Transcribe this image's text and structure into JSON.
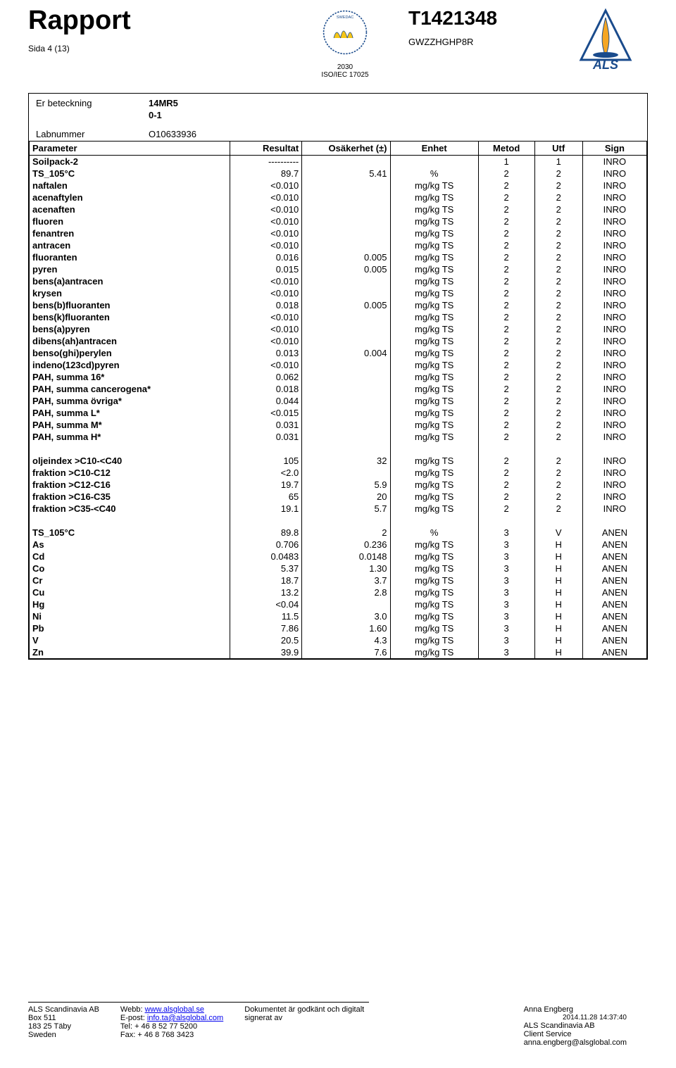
{
  "header": {
    "title": "Rapport",
    "pageLabel": "Sida 4 (13)",
    "accred": {
      "num": "2030",
      "std": "ISO/IEC 17025"
    },
    "reportNum": "T1421348",
    "code": "GWZZHGHP8R",
    "logoText": "ALS"
  },
  "meta": {
    "rows": [
      {
        "lbl": "Er beteckning",
        "val": "14MR5"
      },
      {
        "lbl": "",
        "val": "0-1"
      }
    ],
    "labRow": {
      "lbl": "Labnummer",
      "val": "O10633936"
    }
  },
  "table": {
    "headers": [
      "Parameter",
      "Resultat",
      "Osäkerhet (±)",
      "Enhet",
      "Metod",
      "Utf",
      "Sign"
    ],
    "colWidths": [
      "250px",
      "90px",
      "110px",
      "110px",
      "70px",
      "60px",
      "80px"
    ],
    "rows": [
      [
        "Soilpack-2",
        "----------",
        "",
        "",
        "1",
        "1",
        "INRO"
      ],
      [
        "TS_105°C",
        "89.7",
        "5.41",
        "%",
        "2",
        "2",
        "INRO"
      ],
      [
        "naftalen",
        "<0.010",
        "",
        "mg/kg TS",
        "2",
        "2",
        "INRO"
      ],
      [
        "acenaftylen",
        "<0.010",
        "",
        "mg/kg TS",
        "2",
        "2",
        "INRO"
      ],
      [
        "acenaften",
        "<0.010",
        "",
        "mg/kg TS",
        "2",
        "2",
        "INRO"
      ],
      [
        "fluoren",
        "<0.010",
        "",
        "mg/kg TS",
        "2",
        "2",
        "INRO"
      ],
      [
        "fenantren",
        "<0.010",
        "",
        "mg/kg TS",
        "2",
        "2",
        "INRO"
      ],
      [
        "antracen",
        "<0.010",
        "",
        "mg/kg TS",
        "2",
        "2",
        "INRO"
      ],
      [
        "fluoranten",
        "0.016",
        "0.005",
        "mg/kg TS",
        "2",
        "2",
        "INRO"
      ],
      [
        "pyren",
        "0.015",
        "0.005",
        "mg/kg TS",
        "2",
        "2",
        "INRO"
      ],
      [
        "bens(a)antracen",
        "<0.010",
        "",
        "mg/kg TS",
        "2",
        "2",
        "INRO"
      ],
      [
        "krysen",
        "<0.010",
        "",
        "mg/kg TS",
        "2",
        "2",
        "INRO"
      ],
      [
        "bens(b)fluoranten",
        "0.018",
        "0.005",
        "mg/kg TS",
        "2",
        "2",
        "INRO"
      ],
      [
        "bens(k)fluoranten",
        "<0.010",
        "",
        "mg/kg TS",
        "2",
        "2",
        "INRO"
      ],
      [
        "bens(a)pyren",
        "<0.010",
        "",
        "mg/kg TS",
        "2",
        "2",
        "INRO"
      ],
      [
        "dibens(ah)antracen",
        "<0.010",
        "",
        "mg/kg TS",
        "2",
        "2",
        "INRO"
      ],
      [
        "benso(ghi)perylen",
        "0.013",
        "0.004",
        "mg/kg TS",
        "2",
        "2",
        "INRO"
      ],
      [
        "indeno(123cd)pyren",
        "<0.010",
        "",
        "mg/kg TS",
        "2",
        "2",
        "INRO"
      ],
      [
        "PAH, summa 16*",
        "0.062",
        "",
        "mg/kg TS",
        "2",
        "2",
        "INRO"
      ],
      [
        "PAH, summa cancerogena*",
        "0.018",
        "",
        "mg/kg TS",
        "2",
        "2",
        "INRO"
      ],
      [
        "PAH, summa övriga*",
        "0.044",
        "",
        "mg/kg TS",
        "2",
        "2",
        "INRO"
      ],
      [
        "PAH, summa L*",
        "<0.015",
        "",
        "mg/kg TS",
        "2",
        "2",
        "INRO"
      ],
      [
        "PAH, summa M*",
        "0.031",
        "",
        "mg/kg TS",
        "2",
        "2",
        "INRO"
      ],
      [
        "PAH, summa H*",
        "0.031",
        "",
        "mg/kg TS",
        "2",
        "2",
        "INRO"
      ],
      "SPACER",
      [
        "oljeindex >C10-<C40",
        "105",
        "32",
        "mg/kg TS",
        "2",
        "2",
        "INRO"
      ],
      [
        "fraktion >C10-C12",
        "<2.0",
        "",
        "mg/kg TS",
        "2",
        "2",
        "INRO"
      ],
      [
        "fraktion >C12-C16",
        "19.7",
        "5.9",
        "mg/kg TS",
        "2",
        "2",
        "INRO"
      ],
      [
        "fraktion >C16-C35",
        "65",
        "20",
        "mg/kg TS",
        "2",
        "2",
        "INRO"
      ],
      [
        "fraktion >C35-<C40",
        "19.1",
        "5.7",
        "mg/kg TS",
        "2",
        "2",
        "INRO"
      ],
      "SPACER",
      [
        "TS_105°C",
        "89.8",
        "2",
        "%",
        "3",
        "V",
        "ANEN"
      ],
      [
        "As",
        "0.706",
        "0.236",
        "mg/kg TS",
        "3",
        "H",
        "ANEN"
      ],
      [
        "Cd",
        "0.0483",
        "0.0148",
        "mg/kg TS",
        "3",
        "H",
        "ANEN"
      ],
      [
        "Co",
        "5.37",
        "1.30",
        "mg/kg TS",
        "3",
        "H",
        "ANEN"
      ],
      [
        "Cr",
        "18.7",
        "3.7",
        "mg/kg TS",
        "3",
        "H",
        "ANEN"
      ],
      [
        "Cu",
        "13.2",
        "2.8",
        "mg/kg TS",
        "3",
        "H",
        "ANEN"
      ],
      [
        "Hg",
        "<0.04",
        "",
        "mg/kg TS",
        "3",
        "H",
        "ANEN"
      ],
      [
        "Ni",
        "11.5",
        "3.0",
        "mg/kg TS",
        "3",
        "H",
        "ANEN"
      ],
      [
        "Pb",
        "7.86",
        "1.60",
        "mg/kg TS",
        "3",
        "H",
        "ANEN"
      ],
      [
        "V",
        "20.5",
        "4.3",
        "mg/kg TS",
        "3",
        "H",
        "ANEN"
      ],
      [
        "Zn",
        "39.9",
        "7.6",
        "mg/kg TS",
        "3",
        "H",
        "ANEN"
      ]
    ]
  },
  "footer": {
    "col1": [
      "ALS Scandinavia AB",
      "Box 511",
      "183 25 Täby",
      "Sweden"
    ],
    "col2Labels": [
      "Webb:",
      "E-post:",
      "Tel:",
      "Fax:"
    ],
    "col2Values": [
      "www.alsglobal.se",
      "info.ta@alsglobal.com",
      "+ 46 8 52 77 5200",
      "+ 46 8 768 3423"
    ],
    "col3": [
      "Dokumentet är godkänt och digitalt",
      "signerat av"
    ],
    "col4": {
      "name": "Anna Engberg",
      "ts": "2014.11.28 14:37:40",
      "lines": [
        "ALS Scandinavia AB",
        "Client Service",
        "anna.engberg@alsglobal.com"
      ]
    }
  }
}
